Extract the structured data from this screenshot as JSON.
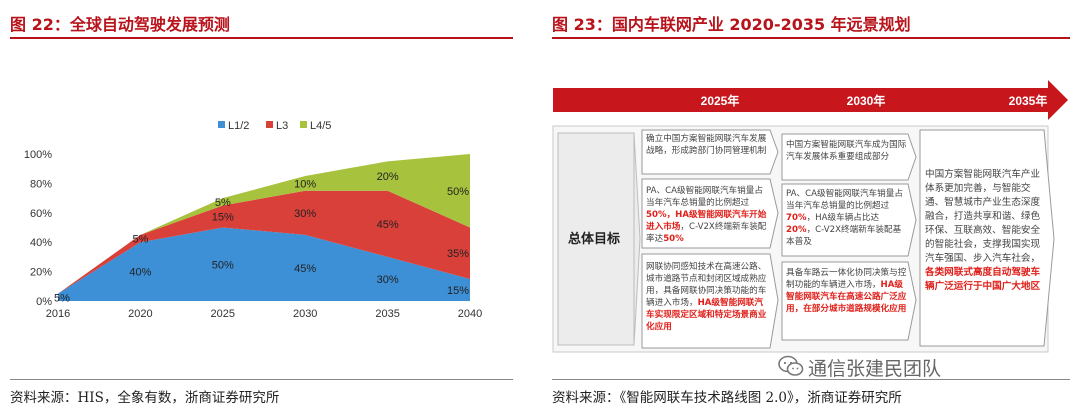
{
  "left_figure": {
    "title": "图 22：全球自动驾驶发展预测",
    "source": "资料来源：HIS，全象有数，浙商证券研究所"
  },
  "right_figure": {
    "title": "图 23：国内车联网产业 2020-2035 年远景规划",
    "source": "资料来源：《智能网联车技术路线图 2.0》，浙商证券研究所",
    "years": [
      "2025年",
      "2030年",
      "2035年"
    ],
    "row_label": "总体目标",
    "col_2025": {
      "box1": "确立中国方案智能网联汽车发展战略，形成跨部门协同管理机制",
      "box2_pre": "PA、CA级智能网联汽车销量占当年汽车总销量的比例超过",
      "box2_red": "50%，HA级智能网联汽车开始进入市场",
      "box2_post": "，C-V2X终端新车装配率达",
      "box2_red2": "50%",
      "box3_pre": "网联协同感知技术在高速公路、城市道路节点和封闭区域成熟应用，具备网联协同决策功能的车辆进入市场，",
      "box3_red": "HA级智能网联汽车实现限定区域和特定场景商业化应用"
    },
    "col_2030": {
      "box1": "中国方案智能网联汽车成为国际汽车发展体系重要组成部分",
      "box2_pre": "PA、CA级智能网联汽车销量占当年汽车总销量的比例超过",
      "box2_red": "70%",
      "box2_mid": "，HA级车辆占比达",
      "box2_red2": "20%",
      "box2_post": "，C-V2X终端新车装配基本普及",
      "box3_pre": "具备车路云一体化协同决策与控制功能的车辆进入市场，",
      "box3_red": "HA级智能网联汽车在高速公路广泛应用，在部分城市道路规模化应用"
    },
    "col_2035": {
      "text_pre": "中国方案智能网联汽车产业体系更加完善，与智能交通、智慧城市产业生态深度融合，打造共享和谐、绿色环保、互联高效、智能安全的智能社会，支撑我国实现汽车强国、步入汽车社会，",
      "text_red": "各类网联式高度自动驾驶车辆广泛运行于中国广大地区"
    }
  },
  "watermark": "通信张建民团队",
  "colors": {
    "title_red": "#b8121b",
    "arrow_red": "#c8161d",
    "l12_blue": "#3d8fd6",
    "l3_red": "#d9403a",
    "l45_green": "#a7c23c",
    "box_red_text": "#e0201b"
  },
  "chart_data": {
    "type": "area",
    "stacked": true,
    "x": [
      "2016",
      "2020",
      "2025",
      "2030",
      "2035",
      "2040"
    ],
    "series": [
      {
        "name": "L1/2",
        "values": [
          5,
          40,
          50,
          45,
          30,
          15
        ],
        "labels": [
          "5%",
          "40%",
          "50%",
          "45%",
          "30%",
          "15%"
        ],
        "color": "#3d8fd6"
      },
      {
        "name": "L3",
        "values": [
          0,
          5,
          15,
          30,
          45,
          35
        ],
        "labels": [
          "",
          "5%",
          "15%",
          "30%",
          "45%",
          "35%"
        ],
        "color": "#d9403a"
      },
      {
        "name": "L4/5",
        "values": [
          0,
          0,
          5,
          10,
          20,
          50
        ],
        "labels": [
          "",
          "",
          "5%",
          "10%",
          "20%",
          "50%"
        ],
        "color": "#a7c23c"
      }
    ],
    "y_ticks": [
      "0%",
      "20%",
      "40%",
      "60%",
      "80%",
      "100%"
    ],
    "ylim": [
      0,
      100
    ],
    "legend_position": "top"
  }
}
